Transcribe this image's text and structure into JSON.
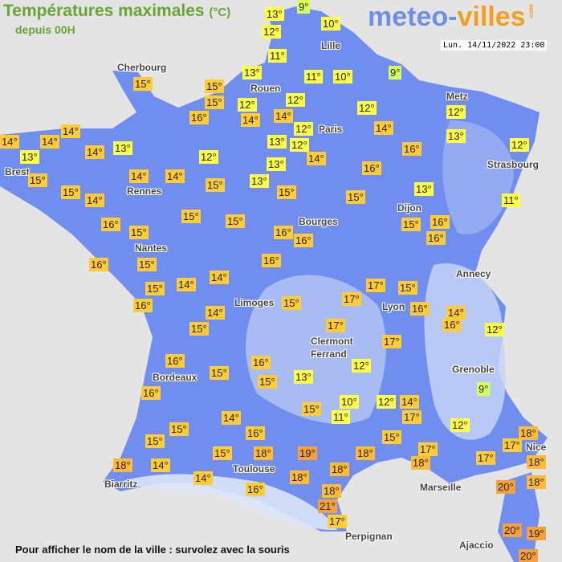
{
  "header": {
    "title": "Températures maximales",
    "unit": "(°C)",
    "subtitle": "depuis 00H",
    "logo_text": "meteo-villes.com",
    "logo_part1": "meteo-",
    "logo_part2": "villes",
    "logo_suffix": ".com",
    "datetime": "Lun. 14/11/2022 23:00"
  },
  "footer": {
    "hint": "Pour afficher le nom de la ville : survolez avec la souris"
  },
  "colors": {
    "background": "#e4e4e4",
    "land": "#6f8ef0",
    "land_light": "#b7c8f4",
    "temp_cold": "#d8ff5a",
    "temp_cool": "#ffff44",
    "temp_mild": "#ffcc33",
    "temp_warm": "#ffbb33",
    "temp_hot": "#f5a03a"
  },
  "cities": [
    "Lille",
    "Cherbourg",
    "Rouen",
    "Paris",
    "Metz",
    "Brest",
    "Rennes",
    "Strasbourg",
    "Dijon",
    "Bourges",
    "Nantes",
    "Annecy",
    "Limoges",
    "Lyon",
    "Clermont",
    "Ferrand",
    "Grenoble",
    "Bordeaux",
    "Toulouse",
    "Nice",
    "Biarritz",
    "Marseille",
    "Perpignan",
    "Ajaccio"
  ],
  "temperatures": [
    13,
    9,
    10,
    12,
    11,
    13,
    11,
    10,
    9,
    15,
    15,
    15,
    12,
    12,
    16,
    14,
    14,
    12,
    12,
    12,
    14,
    13,
    14,
    14,
    13,
    14,
    14,
    13,
    13,
    12,
    14,
    16,
    12,
    12,
    13,
    16,
    15,
    14,
    14,
    15,
    13,
    15,
    14,
    15,
    15,
    13,
    11,
    15,
    15,
    16,
    15,
    16,
    16,
    15,
    16,
    16,
    16,
    15,
    16,
    14,
    15,
    14,
    17,
    15,
    16,
    15,
    17,
    16,
    14,
    16,
    12,
    14,
    15,
    17,
    17,
    16,
    16,
    12,
    15,
    15,
    13,
    16,
    9,
    10,
    12,
    14,
    15,
    11,
    17,
    12,
    18,
    15,
    14,
    16,
    15,
    17,
    15,
    17,
    15,
    18,
    19,
    18,
    18,
    17,
    18,
    18,
    14,
    14,
    18,
    18,
    20,
    18,
    16,
    18,
    21,
    17,
    20,
    19,
    20
  ],
  "temp_unit": "°"
}
